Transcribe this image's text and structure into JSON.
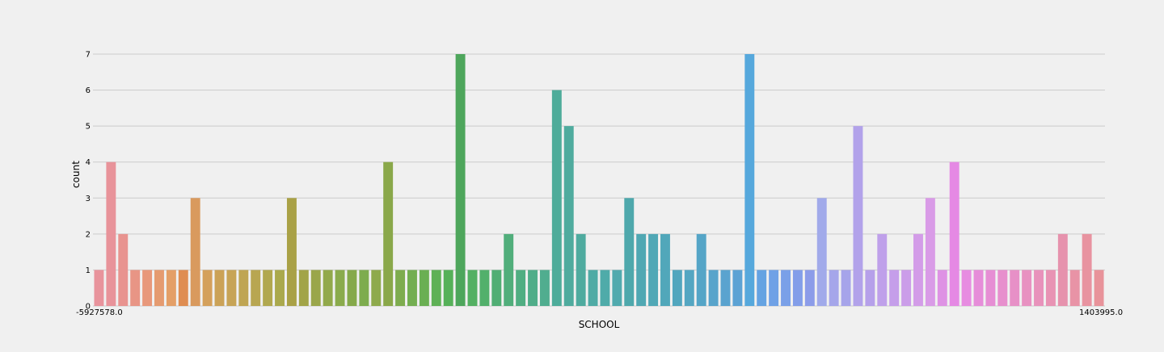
{
  "chart_data": {
    "type": "bar",
    "xlabel": "SCHOOL",
    "ylabel": "count",
    "ylim": [
      0,
      7
    ],
    "yticks": [
      0,
      1,
      2,
      3,
      4,
      5,
      6,
      7
    ],
    "grid": "horizontal",
    "first_tick_label": "-5927578.0",
    "last_tick_label": "1403995.0",
    "values": [
      1,
      4,
      2,
      1,
      1,
      1,
      1,
      1,
      3,
      1,
      1,
      1,
      1,
      1,
      1,
      1,
      3,
      1,
      1,
      1,
      1,
      1,
      1,
      1,
      4,
      1,
      1,
      1,
      1,
      1,
      7,
      1,
      1,
      1,
      2,
      1,
      1,
      1,
      6,
      5,
      2,
      1,
      1,
      1,
      3,
      2,
      2,
      2,
      1,
      1,
      2,
      1,
      1,
      1,
      7,
      1,
      1,
      1,
      1,
      1,
      3,
      1,
      1,
      5,
      1,
      2,
      1,
      1,
      2,
      3,
      1,
      4,
      1,
      1,
      1,
      1,
      1,
      1,
      1,
      1,
      2,
      1,
      2,
      1
    ],
    "colors": [
      "#e8939c",
      "#e8939a",
      "#e8938f",
      "#e89585",
      "#e8987b",
      "#e59b70",
      "#e49f67",
      "#df8d52",
      "#d99a5e",
      "#d4a05b",
      "#cba257",
      "#c7a456",
      "#bfa553",
      "#b8a651",
      "#b1a84f",
      "#aaa94d",
      "#a9a146",
      "#a2a448",
      "#9aa64a",
      "#92a94b",
      "#8aab4c",
      "#85a94a",
      "#7dac4e",
      "#8eaa4c",
      "#8aa84a",
      "#7eac4f",
      "#73ae51",
      "#6aaf53",
      "#5fb156",
      "#56b159",
      "#4ea65c",
      "#54b063",
      "#52b06b",
      "#51ae74",
      "#51ae7b",
      "#50ae82",
      "#50ad89",
      "#50ad8f",
      "#4eac9a",
      "#4fab9e",
      "#4fab9f",
      "#4faba5",
      "#4faba9",
      "#51aaae",
      "#4ea8ac",
      "#50a8b3",
      "#51a8b6",
      "#51a7ba",
      "#52a6be",
      "#54a6c2",
      "#55a5c7",
      "#58a4cb",
      "#5aa3cf",
      "#5ca2d4",
      "#56a8dc",
      "#65a3e2",
      "#6fa1e6",
      "#7aa0e8",
      "#839ee9",
      "#8c9ce9",
      "#a1aaea",
      "#a5a6ea",
      "#a6a4ea",
      "#b2a2ea",
      "#b6a0ea",
      "#bfa0ea",
      "#c59eea",
      "#cb9de9",
      "#d39ce8",
      "#d99be7",
      "#de92e4",
      "#e589e4",
      "#e78ce1",
      "#e68dd9",
      "#e68ed4",
      "#e78fcd",
      "#e790c7",
      "#e891c1",
      "#e892bb",
      "#e893b4",
      "#e692ad",
      "#e893a6",
      "#e893a0",
      "#e8939a"
    ]
  }
}
